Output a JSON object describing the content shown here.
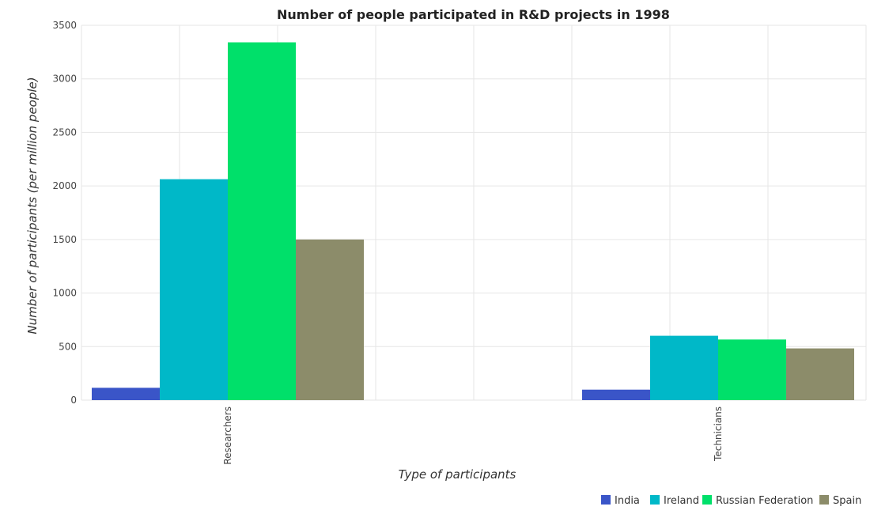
{
  "chart_data": {
    "type": "bar",
    "title": "Number of people participated in R&D projects in 1998",
    "xlabel": "Type of participants",
    "ylabel": "Number of participants (per million people)",
    "categories": [
      "Researchers",
      "Technicians"
    ],
    "series": [
      {
        "name": "India",
        "color": "#3a55c8",
        "values": [
          115,
          98
        ]
      },
      {
        "name": "Ireland",
        "color": "#00b8c8",
        "values": [
          2063,
          601
        ]
      },
      {
        "name": "Russian Federation",
        "color": "#00e06a",
        "values": [
          3341,
          566
        ]
      },
      {
        "name": "Spain",
        "color": "#8c8c6a",
        "values": [
          1500,
          483
        ]
      }
    ],
    "ylim": [
      0,
      3500
    ],
    "yticks": [
      "0",
      "500",
      "1000",
      "1500",
      "2000",
      "2500",
      "3000",
      "3500"
    ],
    "grid": true,
    "legend_position": "bottom-right"
  }
}
